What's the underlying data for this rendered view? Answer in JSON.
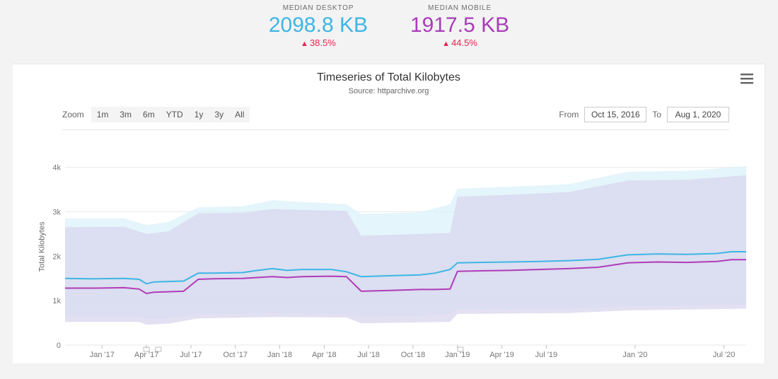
{
  "stats": {
    "desktop": {
      "label": "MEDIAN DESKTOP",
      "value": "2098.8 KB",
      "change": "38.5%",
      "change_direction": "up",
      "color": "#3db6e4"
    },
    "mobile": {
      "label": "MEDIAN MOBILE",
      "value": "1917.5 KB",
      "change": "44.5%",
      "change_direction": "up",
      "color": "#a93db8"
    }
  },
  "chart": {
    "type": "line-with-band",
    "title": "Timeseries of Total Kilobytes",
    "subtitle": "Source: httparchive.org",
    "ylabel": "Total Kilobytes",
    "ylim": [
      0,
      4200
    ],
    "yticks": [
      0,
      1000,
      2000,
      3000,
      4000
    ],
    "ytick_labels": [
      "0",
      "1k",
      "2k",
      "3k",
      "4k"
    ],
    "xlim": [
      0,
      46
    ],
    "xtick_positions": [
      2.5,
      5.5,
      8.5,
      11.5,
      14.5,
      17.5,
      20.5,
      23.5,
      26.5,
      29.5,
      32.5,
      38.5,
      44.5
    ],
    "xtick_labels": [
      "Jan '17",
      "Apr '17",
      "Jul '17",
      "Oct '17",
      "Jan '18",
      "Apr '18",
      "Jul '18",
      "Oct '18",
      "Jan '19",
      "Apr '19",
      "Jul '19",
      "Jan '20",
      "Jul '20"
    ],
    "background_color": "#ffffff",
    "grid_color": "#e8e8e8",
    "series": {
      "desktop": {
        "color": "#3db6e4",
        "band_color": "#d9f1fa",
        "band_opacity": 0.7,
        "line_width": 2,
        "line": [
          {
            "x": 0,
            "y": 1500
          },
          {
            "x": 2,
            "y": 1490
          },
          {
            "x": 4,
            "y": 1500
          },
          {
            "x": 5,
            "y": 1480
          },
          {
            "x": 5.5,
            "y": 1380
          },
          {
            "x": 6,
            "y": 1420
          },
          {
            "x": 7,
            "y": 1430
          },
          {
            "x": 8,
            "y": 1440
          },
          {
            "x": 9,
            "y": 1620
          },
          {
            "x": 10,
            "y": 1620
          },
          {
            "x": 12,
            "y": 1630
          },
          {
            "x": 13,
            "y": 1680
          },
          {
            "x": 14,
            "y": 1720
          },
          {
            "x": 15,
            "y": 1680
          },
          {
            "x": 16,
            "y": 1700
          },
          {
            "x": 18,
            "y": 1700
          },
          {
            "x": 19,
            "y": 1650
          },
          {
            "x": 20,
            "y": 1540
          },
          {
            "x": 22,
            "y": 1560
          },
          {
            "x": 24,
            "y": 1580
          },
          {
            "x": 25,
            "y": 1620
          },
          {
            "x": 26,
            "y": 1700
          },
          {
            "x": 26.5,
            "y": 1850
          },
          {
            "x": 28,
            "y": 1860
          },
          {
            "x": 30,
            "y": 1870
          },
          {
            "x": 32,
            "y": 1880
          },
          {
            "x": 34,
            "y": 1900
          },
          {
            "x": 36,
            "y": 1930
          },
          {
            "x": 38,
            "y": 2030
          },
          {
            "x": 40,
            "y": 2050
          },
          {
            "x": 42,
            "y": 2040
          },
          {
            "x": 44,
            "y": 2060
          },
          {
            "x": 45,
            "y": 2100
          },
          {
            "x": 46,
            "y": 2100
          }
        ],
        "upper": [
          {
            "x": 0,
            "y": 2850
          },
          {
            "x": 4,
            "y": 2850
          },
          {
            "x": 5.5,
            "y": 2700
          },
          {
            "x": 7,
            "y": 2770
          },
          {
            "x": 9,
            "y": 3100
          },
          {
            "x": 12,
            "y": 3120
          },
          {
            "x": 14,
            "y": 3260
          },
          {
            "x": 16,
            "y": 3220
          },
          {
            "x": 19,
            "y": 3170
          },
          {
            "x": 20,
            "y": 2950
          },
          {
            "x": 24,
            "y": 2990
          },
          {
            "x": 26,
            "y": 3170
          },
          {
            "x": 26.5,
            "y": 3520
          },
          {
            "x": 30,
            "y": 3560
          },
          {
            "x": 34,
            "y": 3620
          },
          {
            "x": 38,
            "y": 3900
          },
          {
            "x": 42,
            "y": 3920
          },
          {
            "x": 46,
            "y": 4020
          }
        ],
        "lower": [
          {
            "x": 0,
            "y": 640
          },
          {
            "x": 5,
            "y": 640
          },
          {
            "x": 5.5,
            "y": 580
          },
          {
            "x": 7,
            "y": 600
          },
          {
            "x": 9,
            "y": 690
          },
          {
            "x": 14,
            "y": 720
          },
          {
            "x": 19,
            "y": 700
          },
          {
            "x": 20,
            "y": 640
          },
          {
            "x": 24,
            "y": 660
          },
          {
            "x": 26,
            "y": 700
          },
          {
            "x": 26.5,
            "y": 790
          },
          {
            "x": 34,
            "y": 810
          },
          {
            "x": 38,
            "y": 870
          },
          {
            "x": 46,
            "y": 910
          }
        ]
      },
      "mobile": {
        "color": "#b03db8",
        "band_color": "#d9d5ee",
        "band_opacity": 0.75,
        "line_width": 2,
        "line": [
          {
            "x": 0,
            "y": 1280
          },
          {
            "x": 2,
            "y": 1280
          },
          {
            "x": 4,
            "y": 1290
          },
          {
            "x": 5,
            "y": 1260
          },
          {
            "x": 5.5,
            "y": 1160
          },
          {
            "x": 6,
            "y": 1190
          },
          {
            "x": 7,
            "y": 1200
          },
          {
            "x": 8,
            "y": 1210
          },
          {
            "x": 9,
            "y": 1480
          },
          {
            "x": 10,
            "y": 1490
          },
          {
            "x": 12,
            "y": 1500
          },
          {
            "x": 14,
            "y": 1540
          },
          {
            "x": 15,
            "y": 1520
          },
          {
            "x": 16,
            "y": 1540
          },
          {
            "x": 18,
            "y": 1550
          },
          {
            "x": 19,
            "y": 1540
          },
          {
            "x": 20,
            "y": 1210
          },
          {
            "x": 22,
            "y": 1230
          },
          {
            "x": 24,
            "y": 1250
          },
          {
            "x": 25,
            "y": 1250
          },
          {
            "x": 26,
            "y": 1260
          },
          {
            "x": 26.5,
            "y": 1660
          },
          {
            "x": 28,
            "y": 1670
          },
          {
            "x": 30,
            "y": 1680
          },
          {
            "x": 32,
            "y": 1700
          },
          {
            "x": 34,
            "y": 1720
          },
          {
            "x": 36,
            "y": 1750
          },
          {
            "x": 38,
            "y": 1850
          },
          {
            "x": 40,
            "y": 1870
          },
          {
            "x": 42,
            "y": 1860
          },
          {
            "x": 44,
            "y": 1880
          },
          {
            "x": 45,
            "y": 1920
          },
          {
            "x": 46,
            "y": 1920
          }
        ],
        "upper": [
          {
            "x": 0,
            "y": 2650
          },
          {
            "x": 4,
            "y": 2660
          },
          {
            "x": 5.5,
            "y": 2500
          },
          {
            "x": 7,
            "y": 2560
          },
          {
            "x": 9,
            "y": 2960
          },
          {
            "x": 12,
            "y": 2980
          },
          {
            "x": 14,
            "y": 3060
          },
          {
            "x": 16,
            "y": 3040
          },
          {
            "x": 19,
            "y": 3020
          },
          {
            "x": 20,
            "y": 2460
          },
          {
            "x": 24,
            "y": 2500
          },
          {
            "x": 26,
            "y": 2520
          },
          {
            "x": 26.5,
            "y": 3340
          },
          {
            "x": 30,
            "y": 3380
          },
          {
            "x": 34,
            "y": 3440
          },
          {
            "x": 38,
            "y": 3700
          },
          {
            "x": 42,
            "y": 3720
          },
          {
            "x": 46,
            "y": 3820
          }
        ],
        "lower": [
          {
            "x": 0,
            "y": 520
          },
          {
            "x": 5,
            "y": 520
          },
          {
            "x": 5.5,
            "y": 460
          },
          {
            "x": 7,
            "y": 480
          },
          {
            "x": 9,
            "y": 600
          },
          {
            "x": 14,
            "y": 630
          },
          {
            "x": 19,
            "y": 620
          },
          {
            "x": 20,
            "y": 490
          },
          {
            "x": 24,
            "y": 510
          },
          {
            "x": 26,
            "y": 520
          },
          {
            "x": 26.5,
            "y": 700
          },
          {
            "x": 34,
            "y": 720
          },
          {
            "x": 38,
            "y": 780
          },
          {
            "x": 46,
            "y": 820
          }
        ]
      }
    },
    "nav_markers_x": [
      5.5,
      6.3,
      26.7
    ]
  },
  "controls": {
    "zoom_label": "Zoom",
    "zoom_buttons": [
      "1m",
      "3m",
      "6m",
      "YTD",
      "1y",
      "3y",
      "All"
    ],
    "from_label": "From",
    "to_label": "To",
    "from_value": "Oct 15, 2016",
    "to_value": "Aug 1, 2020"
  },
  "menu_icon_color": "#666666"
}
